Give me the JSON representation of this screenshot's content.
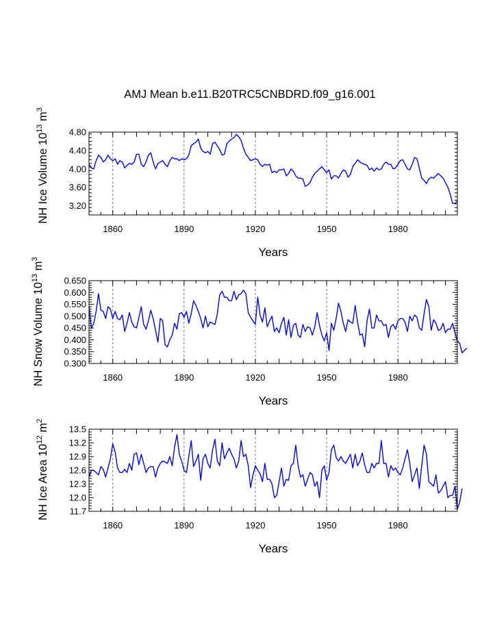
{
  "title": "AMJ Mean b.e11.B20TRC5CNBDRD.f09_g16.001",
  "colors": {
    "line": "#0000ff",
    "axis": "#000000",
    "grid": "#555555",
    "background": "#ffffff"
  },
  "chart_data": [
    {
      "type": "line",
      "series_name": "NH Ice Volume",
      "ylabel": {
        "prefix": "NH Ice Volume 10",
        "exp": "13",
        "unit": " m",
        "unit_exp": "3"
      },
      "xlabel": "Years",
      "xlim": [
        1850,
        2005
      ],
      "ylim": [
        3.0,
        4.8
      ],
      "yticks": [
        "3.20",
        "3.60",
        "4.00",
        "4.40",
        "4.80"
      ],
      "xticks": [
        "1860",
        "1890",
        "1920",
        "1950",
        "1980"
      ],
      "x_start": 1850,
      "values": [
        4.1,
        4.02,
        4.0,
        4.18,
        4.3,
        4.25,
        4.15,
        4.2,
        4.3,
        4.22,
        4.18,
        4.22,
        4.1,
        4.18,
        4.15,
        4.02,
        4.08,
        4.12,
        4.1,
        4.15,
        4.32,
        4.32,
        4.1,
        4.05,
        4.15,
        4.3,
        4.35,
        4.15,
        4.0,
        4.12,
        4.15,
        4.18,
        4.1,
        4.05,
        4.18,
        4.25,
        4.22,
        4.22,
        4.18,
        4.22,
        4.2,
        4.22,
        4.3,
        4.5,
        4.55,
        4.58,
        4.65,
        4.45,
        4.38,
        4.35,
        4.38,
        4.32,
        4.55,
        4.58,
        4.5,
        4.42,
        4.3,
        4.32,
        4.55,
        4.6,
        4.65,
        4.68,
        4.75,
        4.7,
        4.62,
        4.45,
        4.32,
        4.25,
        4.18,
        4.2,
        4.22,
        4.2,
        4.1,
        4.05,
        4.1,
        4.08,
        4.1,
        3.92,
        3.95,
        3.92,
        3.98,
        3.98,
        4.0,
        3.85,
        3.9,
        4.0,
        3.95,
        3.85,
        3.8,
        3.8,
        3.78,
        3.62,
        3.65,
        3.7,
        3.82,
        3.9,
        3.95,
        4.0,
        4.05,
        3.98,
        3.92,
        3.98,
        3.78,
        3.85,
        3.85,
        3.8,
        3.9,
        3.98,
        3.95,
        3.82,
        3.88,
        4.05,
        4.12,
        4.2,
        4.15,
        4.12,
        4.1,
        4.08,
        3.98,
        4.02,
        3.95,
        4.02,
        3.98,
        4.0,
        4.1,
        4.15,
        4.1,
        4.1,
        4.0,
        4.02,
        4.1,
        4.18,
        4.2,
        4.1,
        4.0,
        3.98,
        4.1,
        4.25,
        4.22,
        4.02,
        3.8,
        3.75,
        3.68,
        3.78,
        3.82,
        3.8,
        3.85,
        3.9,
        3.85,
        3.8,
        3.7,
        3.6,
        3.45,
        3.25,
        3.25,
        3.3
      ]
    },
    {
      "type": "line",
      "series_name": "NH Snow Volume",
      "ylabel": {
        "prefix": "NH Snow Volume 10",
        "exp": "13",
        "unit": " m",
        "unit_exp": "3"
      },
      "xlabel": "Years",
      "xlim": [
        1850,
        2005
      ],
      "ylim": [
        0.3,
        0.65
      ],
      "yticks": [
        "0.300",
        "0.350",
        "0.400",
        "0.450",
        "0.500",
        "0.550",
        "0.600",
        "0.650"
      ],
      "xticks": [
        "1860",
        "1890",
        "1920",
        "1950",
        "1980"
      ],
      "x_start": 1850,
      "values": [
        0.54,
        0.448,
        0.47,
        0.52,
        0.595,
        0.525,
        0.52,
        0.49,
        0.54,
        0.53,
        0.49,
        0.52,
        0.49,
        0.485,
        0.505,
        0.435,
        0.47,
        0.515,
        0.475,
        0.455,
        0.45,
        0.495,
        0.54,
        0.465,
        0.445,
        0.48,
        0.525,
        0.49,
        0.44,
        0.39,
        0.49,
        0.48,
        0.38,
        0.37,
        0.4,
        0.42,
        0.47,
        0.445,
        0.51,
        0.515,
        0.495,
        0.52,
        0.47,
        0.51,
        0.565,
        0.545,
        0.52,
        0.49,
        0.45,
        0.5,
        0.455,
        0.475,
        0.47,
        0.465,
        0.51,
        0.59,
        0.605,
        0.58,
        0.58,
        0.565,
        0.565,
        0.605,
        0.57,
        0.59,
        0.595,
        0.61,
        0.595,
        0.515,
        0.495,
        0.48,
        0.465,
        0.58,
        0.505,
        0.475,
        0.535,
        0.455,
        0.48,
        0.5,
        0.435,
        0.45,
        0.43,
        0.47,
        0.495,
        0.42,
        0.485,
        0.41,
        0.46,
        0.47,
        0.42,
        0.41,
        0.465,
        0.435,
        0.455,
        0.45,
        0.42,
        0.455,
        0.515,
        0.46,
        0.42,
        0.395,
        0.43,
        0.355,
        0.47,
        0.44,
        0.49,
        0.555,
        0.52,
        0.47,
        0.435,
        0.485,
        0.475,
        0.47,
        0.545,
        0.475,
        0.42,
        0.425,
        0.37,
        0.48,
        0.53,
        0.45,
        0.45,
        0.505,
        0.48,
        0.48,
        0.46,
        0.465,
        0.41,
        0.455,
        0.465,
        0.445,
        0.48,
        0.49,
        0.49,
        0.475,
        0.435,
        0.5,
        0.48,
        0.505,
        0.495,
        0.45,
        0.44,
        0.51,
        0.57,
        0.54,
        0.44,
        0.485,
        0.47,
        0.44,
        0.445,
        0.47,
        0.43,
        0.445,
        0.445,
        0.47,
        0.43,
        0.395,
        0.385,
        0.345,
        0.355,
        0.365
      ]
    },
    {
      "type": "line",
      "series_name": "NH Ice Area",
      "ylabel": {
        "prefix": "NH Ice Area 10",
        "exp": "12",
        "unit": " m",
        "unit_exp": "2"
      },
      "xlabel": "Years",
      "xlim": [
        1850,
        2005
      ],
      "ylim": [
        11.7,
        13.5
      ],
      "yticks": [
        "11.7",
        "12.0",
        "12.3",
        "12.6",
        "12.9",
        "13.2",
        "13.5"
      ],
      "xticks": [
        "1860",
        "1890",
        "1920",
        "1950",
        "1980"
      ],
      "x_start": 1850,
      "values": [
        12.45,
        12.6,
        12.6,
        12.55,
        12.5,
        12.68,
        12.62,
        12.45,
        12.65,
        12.85,
        13.18,
        13.0,
        12.65,
        12.55,
        12.55,
        12.62,
        12.55,
        12.75,
        12.6,
        12.95,
        12.98,
        12.72,
        12.95,
        12.75,
        12.55,
        12.65,
        12.68,
        12.68,
        12.45,
        12.65,
        12.75,
        12.8,
        12.78,
        12.75,
        12.9,
        12.7,
        13.1,
        13.38,
        12.95,
        12.8,
        12.6,
        12.55,
        12.9,
        13.25,
        12.68,
        12.8,
        12.95,
        12.38,
        12.85,
        12.95,
        12.75,
        12.65,
        13.05,
        13.28,
        12.8,
        12.7,
        13.2,
        12.85,
        12.98,
        13.08,
        12.95,
        12.85,
        12.65,
        12.8,
        13.25,
        12.9,
        12.95,
        12.7,
        12.22,
        12.5,
        12.7,
        12.6,
        12.52,
        12.35,
        12.75,
        12.4,
        12.4,
        12.3,
        12.0,
        12.05,
        12.35,
        12.65,
        12.25,
        12.4,
        12.38,
        12.7,
        12.75,
        13.15,
        12.7,
        12.45,
        12.5,
        12.25,
        12.4,
        12.55,
        12.5,
        12.25,
        12.35,
        12.0,
        12.6,
        12.7,
        12.38,
        12.55,
        13.05,
        13.15,
        12.88,
        12.8,
        12.9,
        12.8,
        12.75,
        12.85,
        12.95,
        12.65,
        12.95,
        12.7,
        12.8,
        12.98,
        12.72,
        12.55,
        12.55,
        12.75,
        12.65,
        12.75,
        12.75,
        13.25,
        12.75,
        12.75,
        12.45,
        12.7,
        12.6,
        12.65,
        12.55,
        12.5,
        12.65,
        12.85,
        13.05,
        12.75,
        12.35,
        12.5,
        12.65,
        12.2,
        12.7,
        13.15,
        12.95,
        12.35,
        12.3,
        12.25,
        12.5,
        12.1,
        12.15,
        12.25,
        12.35,
        12.0,
        12.05,
        12.05,
        12.25,
        11.75,
        11.9,
        12.2
      ]
    }
  ]
}
